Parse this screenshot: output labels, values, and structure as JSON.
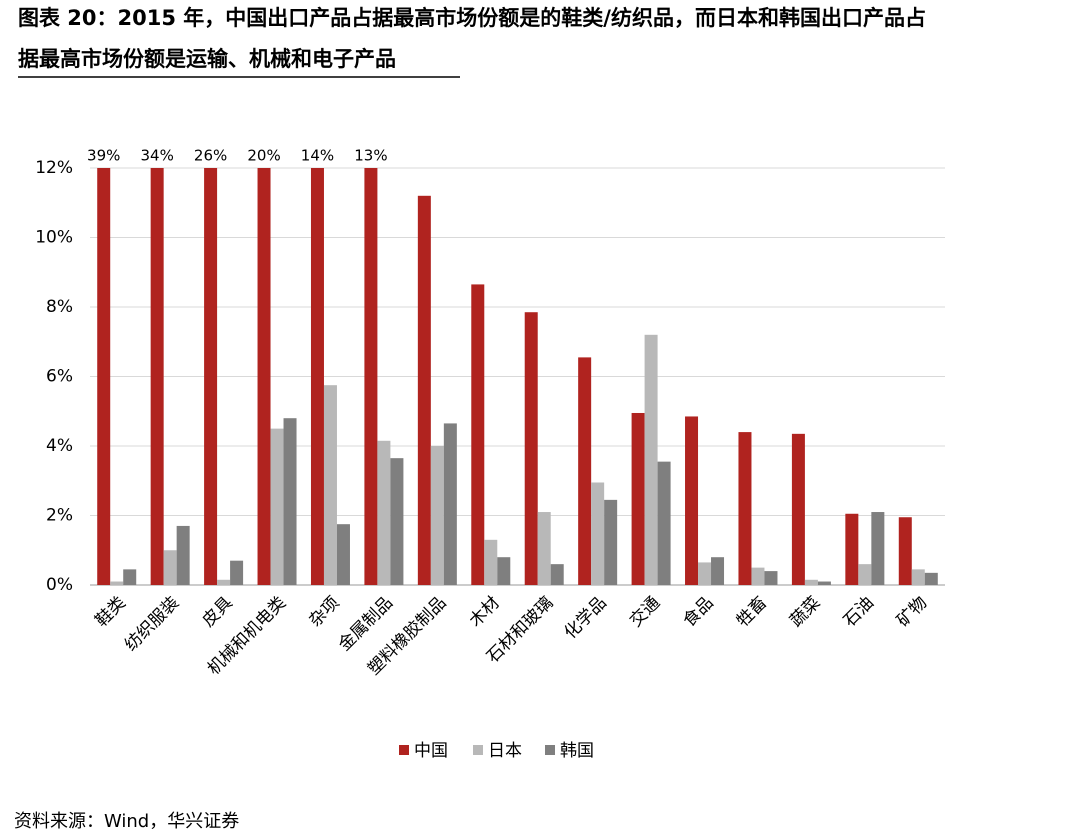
{
  "chart_data": {
    "type": "bar",
    "title": [
      "图表 20：2015 年，中国出口产品占据最高市场份额是的鞋类/纺织品，而日本和韩国出口产品占",
      "据最高市场份额是运输、机械和电子产品"
    ],
    "categories": [
      "鞋类",
      "纺织服装",
      "皮具",
      "机械和机电类",
      "杂项",
      "金属制品",
      "塑料橡胶制品",
      "木材",
      "石材和玻璃",
      "化学品",
      "交通",
      "食品",
      "牲畜",
      "蔬菜",
      "石油",
      "矿物"
    ],
    "series": [
      {
        "name": "中国",
        "color": "#b0231f",
        "values": [
          39,
          34,
          26,
          20,
          14,
          13,
          11.2,
          8.65,
          7.85,
          6.55,
          4.95,
          4.85,
          4.4,
          4.35,
          2.05,
          1.95
        ],
        "value_labels": [
          "39%",
          "34%",
          "26%",
          "20%",
          "14%",
          "13%",
          null,
          null,
          null,
          null,
          null,
          null,
          null,
          null,
          null,
          null
        ]
      },
      {
        "name": "日本",
        "color": "#b8b8b8",
        "values": [
          0.1,
          1.0,
          0.15,
          4.5,
          5.75,
          4.15,
          4.0,
          1.3,
          2.1,
          2.95,
          7.2,
          0.65,
          0.5,
          0.15,
          0.6,
          0.45
        ]
      },
      {
        "name": "韩国",
        "color": "#7f7f7f",
        "values": [
          0.45,
          1.7,
          0.7,
          4.8,
          1.75,
          3.65,
          4.65,
          0.8,
          0.6,
          2.45,
          3.55,
          0.8,
          0.4,
          0.1,
          2.1,
          0.35
        ]
      }
    ],
    "ylim": [
      0,
      12
    ],
    "yticks": [
      {
        "value": 0,
        "label": "0%"
      },
      {
        "value": 2,
        "label": "2%"
      },
      {
        "value": 4,
        "label": "4%"
      },
      {
        "value": 6,
        "label": "6%"
      },
      {
        "value": 8,
        "label": "8%"
      },
      {
        "value": 10,
        "label": "10%"
      },
      {
        "value": 12,
        "label": "12%"
      }
    ],
    "grid": true,
    "legend": "bottom",
    "source": "资料来源：Wind，华兴证券"
  }
}
